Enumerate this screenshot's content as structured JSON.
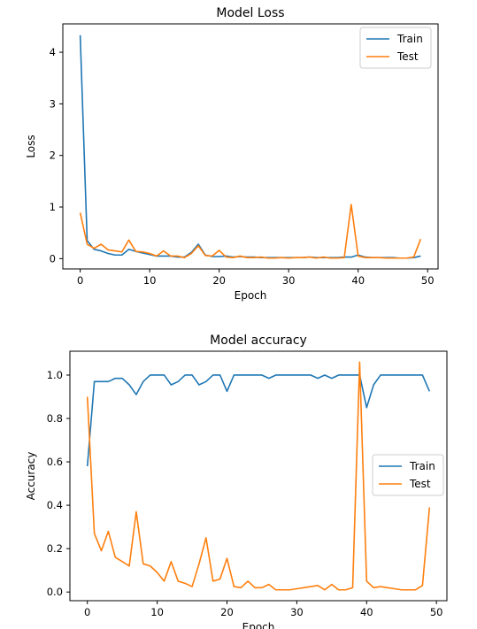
{
  "colors": {
    "train": "#1f77b4",
    "test": "#ff7f0e"
  },
  "chart_data": [
    {
      "type": "line",
      "title": "Model Loss",
      "xlabel": "Epoch",
      "ylabel": "Loss",
      "xlim": [
        -2.5,
        51.5
      ],
      "ylim": [
        -0.2,
        4.55
      ],
      "xticks": [
        0,
        10,
        20,
        30,
        40,
        50
      ],
      "yticks": [
        0,
        1,
        2,
        3,
        4
      ],
      "legend": "top-right",
      "grid": false,
      "x": [
        0,
        1,
        2,
        3,
        4,
        5,
        6,
        7,
        8,
        9,
        10,
        11,
        12,
        13,
        14,
        15,
        16,
        17,
        18,
        19,
        20,
        21,
        22,
        23,
        24,
        25,
        26,
        27,
        28,
        29,
        30,
        31,
        32,
        33,
        34,
        35,
        36,
        37,
        38,
        39,
        40,
        41,
        42,
        43,
        44,
        45,
        46,
        47,
        48,
        49
      ],
      "series": [
        {
          "name": "Train",
          "color_key": "train",
          "values": [
            4.33,
            0.35,
            0.18,
            0.15,
            0.1,
            0.07,
            0.07,
            0.18,
            0.14,
            0.11,
            0.08,
            0.05,
            0.05,
            0.05,
            0.03,
            0.03,
            0.12,
            0.28,
            0.07,
            0.04,
            0.04,
            0.05,
            0.03,
            0.04,
            0.03,
            0.03,
            0.02,
            0.02,
            0.02,
            0.02,
            0.02,
            0.02,
            0.02,
            0.03,
            0.02,
            0.02,
            0.02,
            0.02,
            0.03,
            0.03,
            0.07,
            0.03,
            0.02,
            0.02,
            0.02,
            0.02,
            0.01,
            0.01,
            0.02,
            0.05
          ]
        },
        {
          "name": "Test",
          "color_key": "test",
          "values": [
            0.89,
            0.28,
            0.2,
            0.28,
            0.17,
            0.15,
            0.13,
            0.36,
            0.14,
            0.13,
            0.1,
            0.05,
            0.15,
            0.05,
            0.05,
            0.02,
            0.1,
            0.25,
            0.06,
            0.05,
            0.16,
            0.03,
            0.02,
            0.05,
            0.02,
            0.02,
            0.03,
            0.01,
            0.01,
            0.02,
            0.01,
            0.02,
            0.02,
            0.03,
            0.01,
            0.03,
            0.01,
            0.01,
            0.02,
            1.05,
            0.05,
            0.02,
            0.02,
            0.02,
            0.01,
            0.01,
            0.01,
            0.01,
            0.03,
            0.38
          ]
        }
      ]
    },
    {
      "type": "line",
      "title": "Model accuracy",
      "xlabel": "Epoch",
      "ylabel": "Accuracy",
      "xlim": [
        -2.5,
        51.5
      ],
      "ylim": [
        -0.04,
        1.11
      ],
      "xticks": [
        0,
        10,
        20,
        30,
        40,
        50
      ],
      "yticks": [
        0.0,
        0.2,
        0.4,
        0.6,
        0.8,
        1.0
      ],
      "legend": "center-right",
      "grid": false,
      "x": [
        0,
        1,
        2,
        3,
        4,
        5,
        6,
        7,
        8,
        9,
        10,
        11,
        12,
        13,
        14,
        15,
        16,
        17,
        18,
        19,
        20,
        21,
        22,
        23,
        24,
        25,
        26,
        27,
        28,
        29,
        30,
        31,
        32,
        33,
        34,
        35,
        36,
        37,
        38,
        39,
        40,
        41,
        42,
        43,
        44,
        45,
        46,
        47,
        48,
        49
      ],
      "series": [
        {
          "name": "Train",
          "color_key": "train",
          "values": [
            0.58,
            0.97,
            0.97,
            0.97,
            0.985,
            0.985,
            0.955,
            0.91,
            0.97,
            1.0,
            1.0,
            1.0,
            0.955,
            0.97,
            1.0,
            1.0,
            0.955,
            0.97,
            1.0,
            1.0,
            0.925,
            1.0,
            1.0,
            1.0,
            1.0,
            1.0,
            0.985,
            1.0,
            1.0,
            1.0,
            1.0,
            1.0,
            1.0,
            0.985,
            1.0,
            0.985,
            1.0,
            1.0,
            1.0,
            1.0,
            0.85,
            0.955,
            1.0,
            1.0,
            1.0,
            1.0,
            1.0,
            1.0,
            1.0,
            0.925
          ]
        },
        {
          "name": "Test",
          "color_key": "test",
          "values": [
            0.9,
            0.27,
            0.19,
            0.28,
            0.16,
            0.14,
            0.12,
            0.37,
            0.13,
            0.12,
            0.09,
            0.05,
            0.14,
            0.05,
            0.04,
            0.025,
            0.13,
            0.25,
            0.05,
            0.06,
            0.155,
            0.025,
            0.02,
            0.05,
            0.02,
            0.02,
            0.035,
            0.01,
            0.01,
            0.01,
            0.015,
            0.02,
            0.025,
            0.03,
            0.01,
            0.035,
            0.01,
            0.01,
            0.02,
            1.06,
            0.05,
            0.02,
            0.025,
            0.02,
            0.015,
            0.01,
            0.01,
            0.01,
            0.03,
            0.39
          ]
        }
      ]
    }
  ]
}
